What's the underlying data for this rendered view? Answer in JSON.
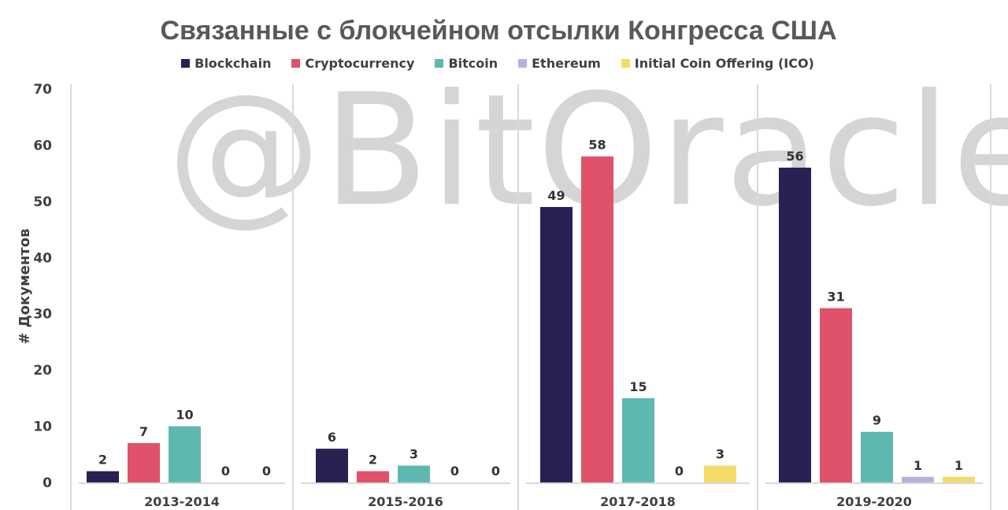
{
  "watermark": "@BitOracle",
  "colors": {
    "Blockchain": "#272252",
    "Cryptocurrency": "#e0516b",
    "Bitcoin": "#5fb8b0",
    "Ethereum": "#b8b0dc",
    "ICO": "#f5dc6a"
  },
  "chart_data": {
    "type": "bar",
    "title": "Связанные с блокчейном отсылки Конгресса США",
    "xlabel": "",
    "ylabel": "# Документов",
    "ylim": [
      0,
      70
    ],
    "yticks": [
      0,
      10,
      20,
      30,
      40,
      50,
      60,
      70
    ],
    "grid": false,
    "legend_position": "top",
    "categories": [
      "2013-2014",
      "2015-2016",
      "2017-2018",
      "2019-2020"
    ],
    "series": [
      {
        "name": "Blockchain",
        "values": [
          2,
          6,
          49,
          56
        ]
      },
      {
        "name": "Cryptocurrency",
        "values": [
          7,
          2,
          58,
          31
        ]
      },
      {
        "name": "Bitcoin",
        "values": [
          10,
          3,
          15,
          9
        ]
      },
      {
        "name": "Ethereum",
        "values": [
          0,
          0,
          0,
          1
        ]
      },
      {
        "name": "Initial Coin Offering (ICO)",
        "values": [
          0,
          0,
          3,
          1
        ]
      }
    ]
  }
}
